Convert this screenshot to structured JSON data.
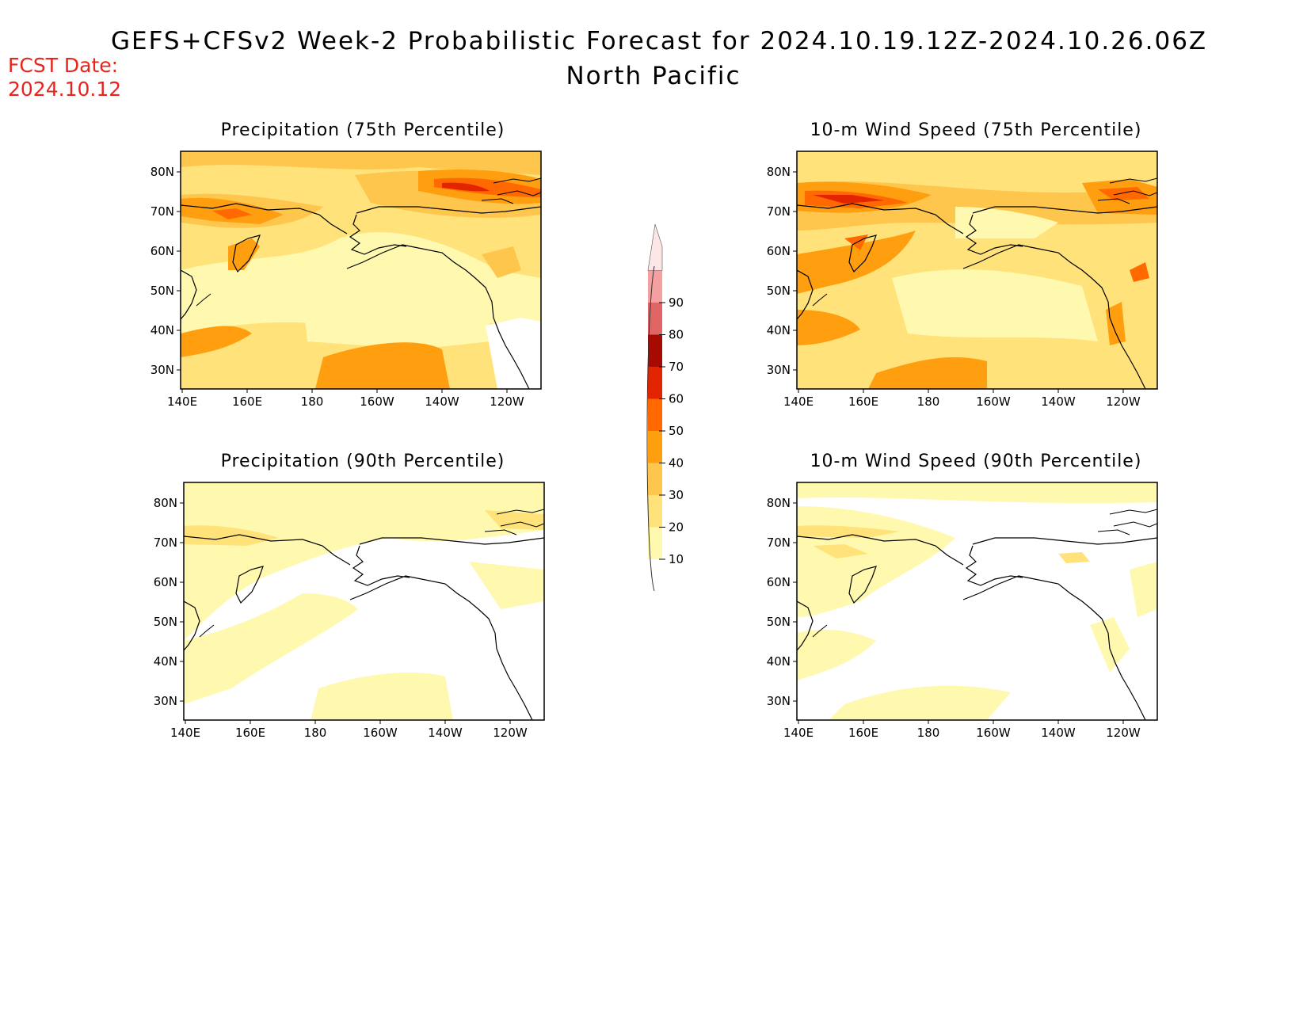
{
  "header": {
    "title": "GEFS+CFSv2 Week-2 Probabilistic Forecast for 2024.10.19.12Z-2024.10.26.06Z",
    "region": "North Pacific",
    "fcst_label": "FCST Date:",
    "fcst_date": "2024.10.12"
  },
  "panels": [
    {
      "id": "precip75",
      "title": "Precipitation (75th Percentile)"
    },
    {
      "id": "wind75",
      "title": "10-m Wind Speed (75th Percentile)"
    },
    {
      "id": "precip90",
      "title": "Precipitation (90th Percentile)"
    },
    {
      "id": "wind90",
      "title": "10-m Wind Speed (90th Percentile)"
    }
  ],
  "axes": {
    "lon_labels": [
      "140E",
      "160E",
      "180",
      "160W",
      "140W",
      "120W"
    ],
    "lat_labels": [
      "80N",
      "70N",
      "60N",
      "50N",
      "40N",
      "30N"
    ]
  },
  "colorbar": {
    "levels": [
      "10",
      "20",
      "30",
      "40",
      "50",
      "60",
      "70",
      "80",
      "90"
    ],
    "colors": [
      "#fff9b0",
      "#ffe27a",
      "#ffc64e",
      "#ff9e0f",
      "#ff6900",
      "#e22400",
      "#a60a00",
      "#e06666",
      "#f4a0a0",
      "#fde6e6"
    ]
  },
  "palette": {
    "c1": "#fff9b0",
    "c2": "#ffe27a",
    "c3": "#ffc64e",
    "c4": "#ff9e0f",
    "c5": "#ff6900",
    "c6": "#e22400"
  }
}
